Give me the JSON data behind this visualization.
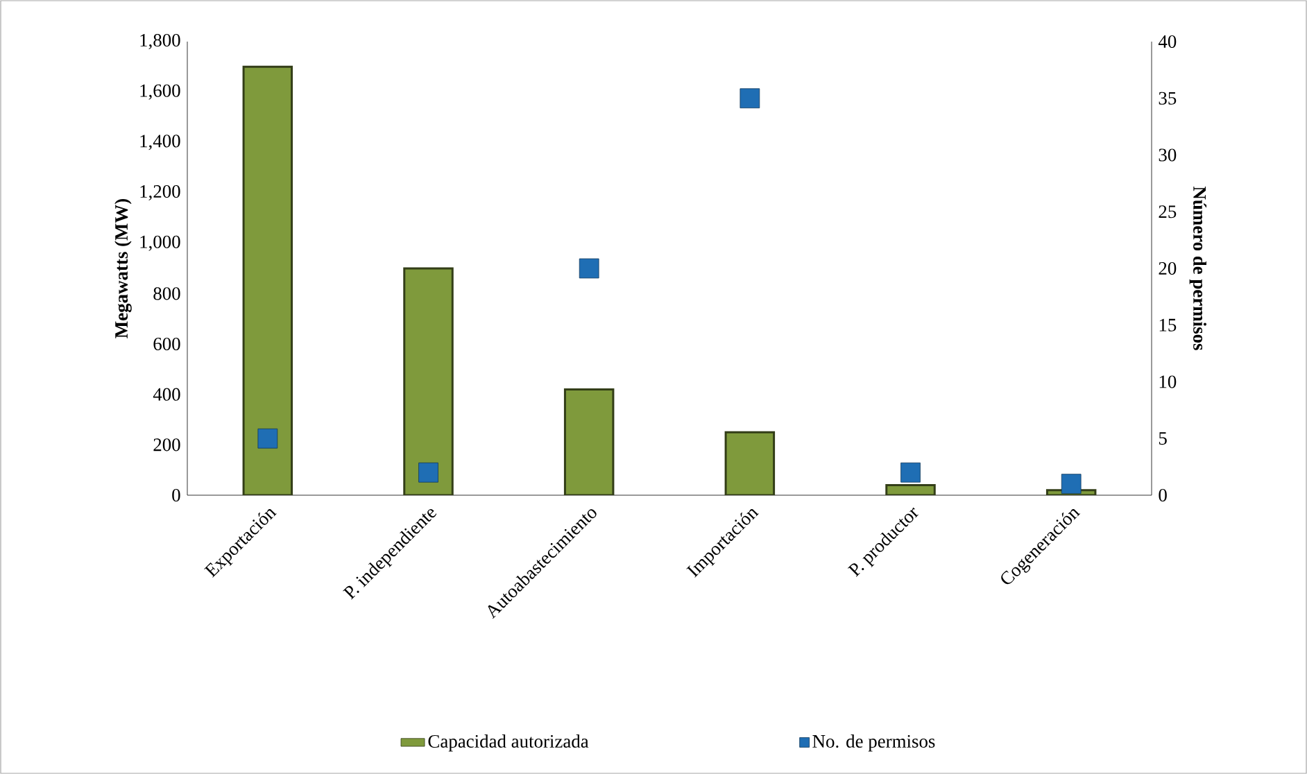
{
  "chart_data": {
    "type": "bar",
    "ylabel": "Megawatts (MW)",
    "y2label": "Número de permisos",
    "categories": [
      "Exportación",
      "P. independiente",
      "Autoabastecimiento",
      "Importación",
      "P. productor",
      "Cogeneración"
    ],
    "series": [
      {
        "name": "Capacidad autorizada",
        "color": "#7f9a3c",
        "values": [
          1700,
          900,
          420,
          250,
          40,
          20
        ]
      },
      {
        "name": "No. de permisos",
        "color": "#1f6eb4",
        "type": "scatter",
        "axis": "y2",
        "marker": "square",
        "values": [
          5,
          2,
          20,
          35,
          2,
          1
        ]
      }
    ],
    "ylim": [
      0,
      1800
    ],
    "yticks": [
      0,
      {
        "value": 200,
        "label": "200"
      },
      {
        "value": 400,
        "label": "400"
      },
      {
        "value": 600,
        "label": "600"
      },
      {
        "value": 800,
        "label": "800"
      },
      {
        "value": 1000,
        "label": "1,000"
      },
      {
        "value": 1200,
        "label": "1,200"
      },
      {
        "value": 1400,
        "label": "1,400"
      },
      {
        "value": 1600,
        "label": "1,600"
      },
      {
        "value": 1800,
        "label": "1,800"
      }
    ],
    "y2lim": [
      0,
      40
    ],
    "y2ticks": [
      0,
      5,
      10,
      15,
      20,
      25,
      30,
      35,
      40
    ],
    "legend": "bottom",
    "grid": false
  }
}
